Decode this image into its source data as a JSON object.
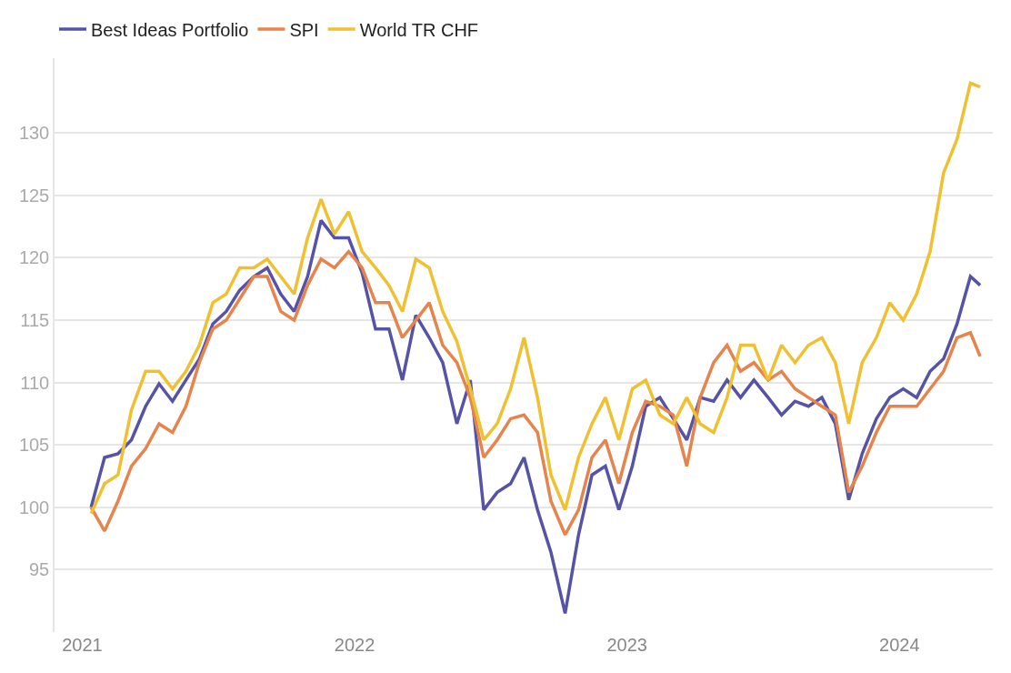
{
  "chart_data": {
    "type": "line",
    "legend": "top left",
    "grid": "y",
    "marker": "none",
    "line_style": "solid",
    "x": [
      "2021-01-13",
      "2021-01-31",
      "2021-02-18",
      "2021-03-08",
      "2021-03-27",
      "2021-04-14",
      "2021-05-02",
      "2021-05-20",
      "2021-06-07",
      "2021-06-25",
      "2021-07-13",
      "2021-07-31",
      "2021-08-19",
      "2021-09-06",
      "2021-09-24",
      "2021-10-12",
      "2021-10-30",
      "2021-11-17",
      "2021-12-05",
      "2021-12-24",
      "2022-01-11",
      "2022-01-29",
      "2022-02-16",
      "2022-03-06",
      "2022-03-24",
      "2022-04-11",
      "2022-04-29",
      "2022-05-18",
      "2022-06-05",
      "2022-06-23",
      "2022-07-11",
      "2022-07-29",
      "2022-08-16",
      "2022-09-03",
      "2022-09-21",
      "2022-10-10",
      "2022-10-28",
      "2022-11-15",
      "2022-12-03",
      "2022-12-21",
      "2023-01-08",
      "2023-01-26",
      "2023-02-14",
      "2023-03-04",
      "2023-03-22",
      "2023-04-09",
      "2023-04-27",
      "2023-05-15",
      "2023-06-02",
      "2023-06-20",
      "2023-07-09",
      "2023-07-27",
      "2023-08-14",
      "2023-09-01",
      "2023-09-19",
      "2023-10-07",
      "2023-10-25",
      "2023-11-12",
      "2023-12-01",
      "2023-12-19",
      "2024-01-06",
      "2024-01-24",
      "2024-02-11",
      "2024-02-29",
      "2024-03-18",
      "2024-04-05",
      "2024-04-18"
    ],
    "xlim": [
      "2020-11-25",
      "2024-05-05"
    ],
    "xticks": [
      {
        "value": "2021-01-01",
        "label": "2021"
      },
      {
        "value": "2022-01-01",
        "label": "2022"
      },
      {
        "value": "2023-01-01",
        "label": "2023"
      },
      {
        "value": "2024-01-01",
        "label": "2024"
      }
    ],
    "ylim": [
      90,
      136
    ],
    "yticks": [
      95,
      100,
      105,
      110,
      115,
      120,
      125,
      130
    ],
    "series": [
      {
        "name": "Best Ideas Portfolio",
        "color": "#5653a6",
        "values": [
          100,
          104.0,
          104.3,
          105.4,
          108.1,
          109.9,
          108.5,
          110.2,
          111.9,
          114.7,
          115.7,
          117.4,
          118.5,
          119.2,
          117.1,
          115.7,
          118.5,
          123.0,
          121.6,
          121.6,
          118.8,
          114.3,
          114.3,
          110.2,
          115.4,
          113.6,
          111.6,
          106.7,
          110.2,
          99.8,
          101.2,
          101.9,
          104.0,
          99.8,
          96.4,
          91.5,
          97.8,
          102.6,
          103.3,
          99.8,
          103.3,
          108.1,
          108.8,
          107.1,
          105.4,
          108.8,
          108.5,
          110.2,
          108.8,
          110.2,
          108.8,
          107.4,
          108.5,
          108.1,
          108.8,
          106.7,
          100.6,
          104.3,
          107.1,
          108.8,
          109.5,
          108.8,
          110.9,
          111.9,
          114.7,
          118.5,
          117.8
        ]
      },
      {
        "name": "SPI",
        "color": "#e5844c",
        "values": [
          100,
          98.1,
          100.5,
          103.3,
          104.7,
          106.7,
          106.0,
          108.1,
          111.6,
          114.3,
          115.0,
          116.7,
          118.5,
          118.5,
          115.7,
          115.0,
          117.8,
          119.9,
          119.2,
          120.5,
          119.2,
          116.4,
          116.4,
          113.6,
          115.0,
          116.4,
          113.0,
          111.6,
          108.8,
          104.0,
          105.4,
          107.1,
          107.4,
          106.0,
          100.5,
          97.8,
          99.8,
          104.0,
          105.4,
          101.9,
          106.0,
          108.5,
          108.1,
          107.4,
          103.3,
          108.8,
          111.6,
          113.0,
          110.9,
          111.6,
          110.2,
          110.9,
          109.5,
          108.8,
          108.1,
          107.4,
          101.2,
          103.3,
          106.0,
          108.1,
          108.1,
          108.1,
          109.5,
          110.9,
          113.6,
          114.0,
          112.1
        ]
      },
      {
        "name": "World TR CHF",
        "color": "#efc132",
        "values": [
          99.5,
          101.9,
          102.6,
          107.8,
          110.9,
          110.9,
          109.5,
          110.9,
          113.0,
          116.4,
          117.1,
          119.2,
          119.2,
          119.9,
          118.5,
          117.1,
          121.6,
          124.7,
          121.9,
          123.7,
          120.5,
          119.2,
          117.8,
          115.7,
          119.9,
          119.2,
          115.7,
          113.3,
          109.5,
          105.4,
          106.7,
          109.5,
          113.6,
          108.8,
          102.6,
          99.8,
          104.0,
          106.7,
          108.8,
          105.4,
          109.5,
          110.2,
          107.4,
          106.7,
          108.8,
          106.7,
          106.0,
          108.8,
          113.0,
          113.0,
          110.2,
          113.0,
          111.6,
          113.0,
          113.6,
          111.6,
          106.7,
          111.6,
          113.6,
          116.4,
          115.0,
          117.1,
          120.5,
          126.8,
          129.5,
          134,
          133.7
        ]
      }
    ]
  }
}
